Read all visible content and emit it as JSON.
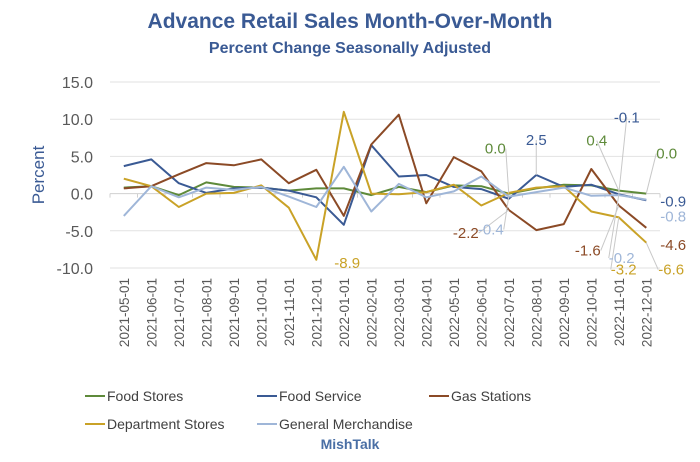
{
  "chart_data": {
    "type": "line",
    "title": "Advance Retail Sales Month-Over-Month",
    "subtitle": "Percent Change Seasonally Adjusted",
    "xlabel": "",
    "ylabel": "Percent",
    "ylim": [
      -10,
      15
    ],
    "yticks": [
      "15.0",
      "10.0",
      "5.0",
      "0.0",
      "-5.0",
      "-10.0"
    ],
    "ytick_values": [
      15,
      10,
      5,
      0,
      -5,
      -10
    ],
    "grid": true,
    "legend_position": "bottom",
    "categories": [
      "2021-05-01",
      "2021-06-01",
      "2021-07-01",
      "2021-08-01",
      "2021-09-01",
      "2021-10-01",
      "2021-11-01",
      "2021-12-01",
      "2022-01-01",
      "2022-02-01",
      "2022-03-01",
      "2022-04-01",
      "2022-05-01",
      "2022-06-01",
      "2022-07-01",
      "2022-08-01",
      "2022-09-01",
      "2022-10-01",
      "2022-11-01",
      "2022-12-01"
    ],
    "series": [
      {
        "name": "Food Stores",
        "color": "#5e8a3a",
        "values": [
          0.8,
          1.0,
          -0.2,
          1.5,
          0.9,
          0.8,
          0.4,
          0.7,
          0.7,
          -0.2,
          0.9,
          0.2,
          1.1,
          1.0,
          0.0,
          0.7,
          1.2,
          1.1,
          0.4,
          0.0
        ]
      },
      {
        "name": "Food Service",
        "color": "#3a5a94",
        "values": [
          3.7,
          4.6,
          1.4,
          0.1,
          0.7,
          0.8,
          0.4,
          -0.5,
          -4.2,
          6.5,
          2.3,
          2.5,
          0.9,
          0.6,
          -0.7,
          2.5,
          0.9,
          1.2,
          -0.1,
          -0.9
        ]
      },
      {
        "name": "Gas Stations",
        "color": "#8b4a26",
        "values": [
          0.7,
          1.0,
          2.6,
          4.1,
          3.8,
          4.6,
          1.4,
          3.2,
          -3.0,
          6.6,
          10.6,
          -1.3,
          4.9,
          3.0,
          -2.2,
          -4.9,
          -4.1,
          3.3,
          -1.6,
          -4.6
        ]
      },
      {
        "name": "Department Stores",
        "color": "#c9a227",
        "values": [
          2.0,
          1.0,
          -1.8,
          0.0,
          0.1,
          1.1,
          -1.9,
          -8.9,
          11.0,
          0.0,
          -0.1,
          0.2,
          1.2,
          -1.6,
          0.1,
          0.8,
          1.0,
          -2.4,
          -3.2,
          -6.6
        ]
      },
      {
        "name": "General Merchandise",
        "color": "#9fb6d8",
        "values": [
          -3.0,
          1.0,
          -0.5,
          0.8,
          0.5,
          0.9,
          -0.4,
          -1.8,
          3.6,
          -2.4,
          1.3,
          -0.5,
          0.3,
          2.3,
          -0.4,
          0.2,
          0.8,
          -0.3,
          -0.2,
          -0.8
        ]
      }
    ],
    "annotations": [
      {
        "text": "-8.9",
        "series": "Department Stores",
        "category": "2021-12-01"
      },
      {
        "text": "-2.2",
        "series": "Gas Stations",
        "category": "2022-07-01"
      },
      {
        "text": "0.0",
        "series": "Food Stores",
        "category": "2022-07-01"
      },
      {
        "text": "-0.4",
        "series": "General Merchandise",
        "category": "2022-07-01"
      },
      {
        "text": "2.5",
        "series": "Food Service",
        "category": "2022-08-01"
      },
      {
        "text": "0.4",
        "series": "Food Stores",
        "category": "2022-11-01"
      },
      {
        "text": "-0.1",
        "series": "Food Service",
        "category": "2022-11-01"
      },
      {
        "text": "-1.6",
        "series": "Gas Stations",
        "category": "2022-11-01"
      },
      {
        "text": "-3.2",
        "series": "Department Stores",
        "category": "2022-11-01"
      },
      {
        "text": "-0.2",
        "series": "General Merchandise",
        "category": "2022-11-01"
      },
      {
        "text": "0.0",
        "series": "Food Stores",
        "category": "2022-12-01"
      },
      {
        "text": "-0.9",
        "series": "Food Service",
        "category": "2022-12-01"
      },
      {
        "text": "-0.8",
        "series": "General Merchandise",
        "category": "2022-12-01"
      },
      {
        "text": "-4.6",
        "series": "Gas Stations",
        "category": "2022-12-01"
      },
      {
        "text": "-6.6",
        "series": "Department Stores",
        "category": "2022-12-01"
      }
    ]
  },
  "page": {
    "title": "Advance Retail Sales Month-Over-Month",
    "subtitle": "Percent Change Seasonally Adjusted",
    "source": "MishTalk",
    "ylabel": "Percent"
  }
}
